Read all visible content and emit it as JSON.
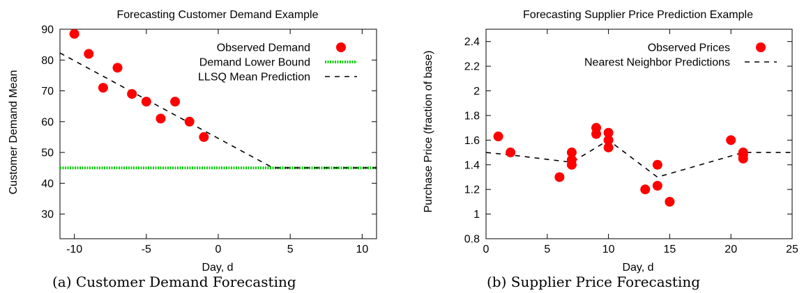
{
  "chart_data": [
    {
      "type": "scatter",
      "title": "Forecasting Customer Demand Example",
      "xlabel": "Day, d",
      "ylabel": "Customer Demand Mean",
      "caption": "(a) Customer Demand Forecasting",
      "xlim": [
        -11,
        11
      ],
      "ylim": [
        22,
        90
      ],
      "xticks": [
        -10,
        -5,
        0,
        5,
        10
      ],
      "yticks": [
        30,
        40,
        50,
        60,
        70,
        80,
        90
      ],
      "grid": false,
      "legend_position": "top-right",
      "series": [
        {
          "name": "Observed Demand",
          "kind": "points",
          "color": "#ff0000",
          "x": [
            -10,
            -9,
            -8,
            -7,
            -6,
            -5,
            -4,
            -3,
            -2,
            -1
          ],
          "y": [
            88.5,
            82,
            71,
            77.5,
            69,
            66.5,
            61,
            66.5,
            60,
            55
          ]
        },
        {
          "name": "Demand Lower Bound",
          "kind": "dotted-line",
          "color": "#00cc00",
          "x": [
            -11,
            11
          ],
          "y": [
            45,
            45
          ]
        },
        {
          "name": "LLSQ Mean Prediction",
          "kind": "dashed-line",
          "color": "#000000",
          "x": [
            -11,
            3.8,
            11
          ],
          "y": [
            82.3,
            45,
            45
          ]
        }
      ]
    },
    {
      "type": "scatter",
      "title": "Forecasting Supplier Price Prediction Example",
      "xlabel": "Day, d",
      "ylabel": "Purchase Price (fraction of base)",
      "caption": "(b) Supplier Price Forecasting",
      "xlim": [
        0,
        25
      ],
      "ylim": [
        0.8,
        2.5
      ],
      "xticks": [
        0,
        5,
        10,
        15,
        20,
        25
      ],
      "yticks": [
        "0.8",
        "1",
        "1.2",
        "1.4",
        "1.6",
        "1.8",
        "2",
        "2.2",
        "2.4"
      ],
      "grid": false,
      "legend_position": "top-right",
      "series": [
        {
          "name": "Observed Prices",
          "kind": "points",
          "color": "#ff0000",
          "x": [
            1,
            2,
            6,
            7,
            7,
            7,
            9,
            9,
            10,
            10,
            10,
            13,
            14,
            14,
            15,
            20,
            21,
            21,
            21
          ],
          "y": [
            1.63,
            1.5,
            1.3,
            1.5,
            1.44,
            1.4,
            1.7,
            1.65,
            1.66,
            1.6,
            1.54,
            1.2,
            1.4,
            1.23,
            1.1,
            1.6,
            1.5,
            1.48,
            1.45
          ]
        },
        {
          "name": "Nearest Neighbor Predictions",
          "kind": "dashed-line",
          "color": "#000000",
          "x": [
            0,
            2,
            7,
            10,
            14,
            21,
            25
          ],
          "y": [
            1.5,
            1.48,
            1.42,
            1.6,
            1.3,
            1.5,
            1.5
          ]
        }
      ]
    }
  ]
}
